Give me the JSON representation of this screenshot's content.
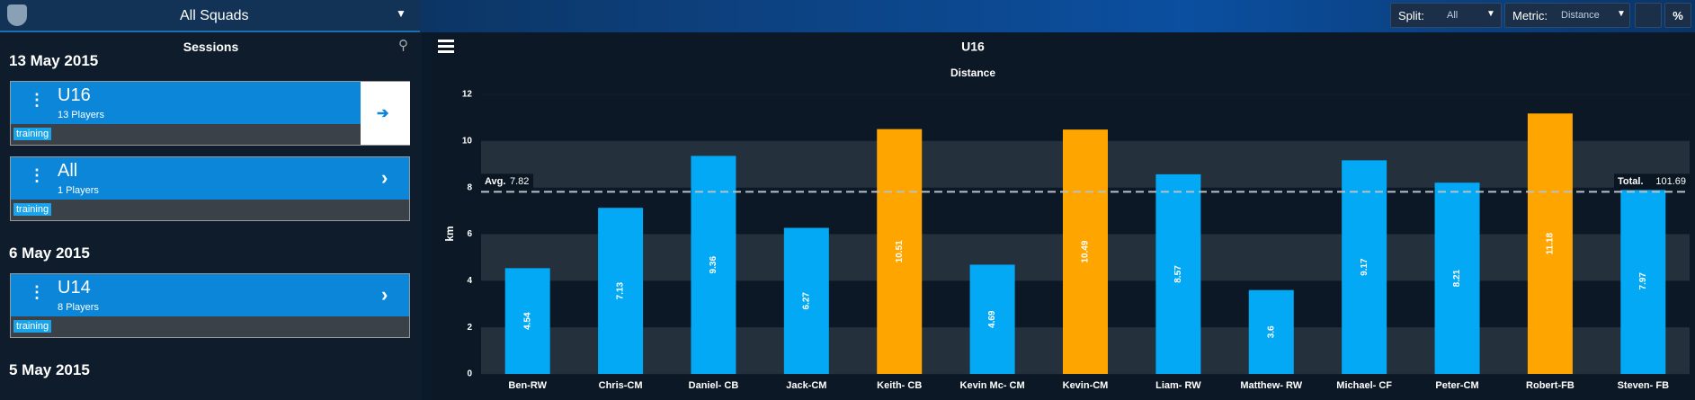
{
  "header": {
    "squad": "All Squads",
    "split_label": "Split:",
    "split": "All",
    "metric_label": "Metric:",
    "metric": "Distance"
  },
  "sidebar": {
    "title": "Sessions",
    "groups": [
      {
        "date": "13 May 2015",
        "sessions": [
          {
            "name": "U16",
            "players": "13 Players",
            "tag": "training"
          },
          {
            "name": "All",
            "players": "1 Players",
            "tag": "training"
          }
        ]
      },
      {
        "date": "6 May 2015",
        "sessions": [
          {
            "name": "U14",
            "players": "8 Players",
            "tag": "training"
          }
        ]
      },
      {
        "date": "5 May 2015",
        "sessions": []
      }
    ]
  },
  "chart_data": {
    "type": "bar",
    "title": "U16",
    "subtitle": "Distance",
    "ylabel": "km",
    "categories": [
      "Ben-RW",
      "Chris-CM",
      "Daniel- CB",
      "Jack-CM",
      "Keith- CB",
      "Kevin Mc- CM",
      "Kevin-CM",
      "Liam- RW",
      "Matthew- RW",
      "Michael- CF",
      "Peter-CM",
      "Robert-FB",
      "Steven- FB"
    ],
    "values": [
      4.54,
      7.13,
      9.36,
      6.27,
      10.51,
      4.69,
      10.49,
      8.57,
      3.6,
      9.17,
      8.21,
      11.18,
      7.97
    ],
    "colors": [
      "#03a9f4",
      "#03a9f4",
      "#03a9f4",
      "#03a9f4",
      "#ffa500",
      "#03a9f4",
      "#ffa500",
      "#03a9f4",
      "#03a9f4",
      "#03a9f4",
      "#03a9f4",
      "#ffa500",
      "#03a9f4"
    ],
    "ylim": [
      0,
      12
    ],
    "yticks": [
      0,
      2,
      4,
      6,
      8,
      10,
      12
    ],
    "avg_label": "Avg.",
    "avg": 7.82,
    "total_label": "Total.",
    "total": 101.69
  }
}
